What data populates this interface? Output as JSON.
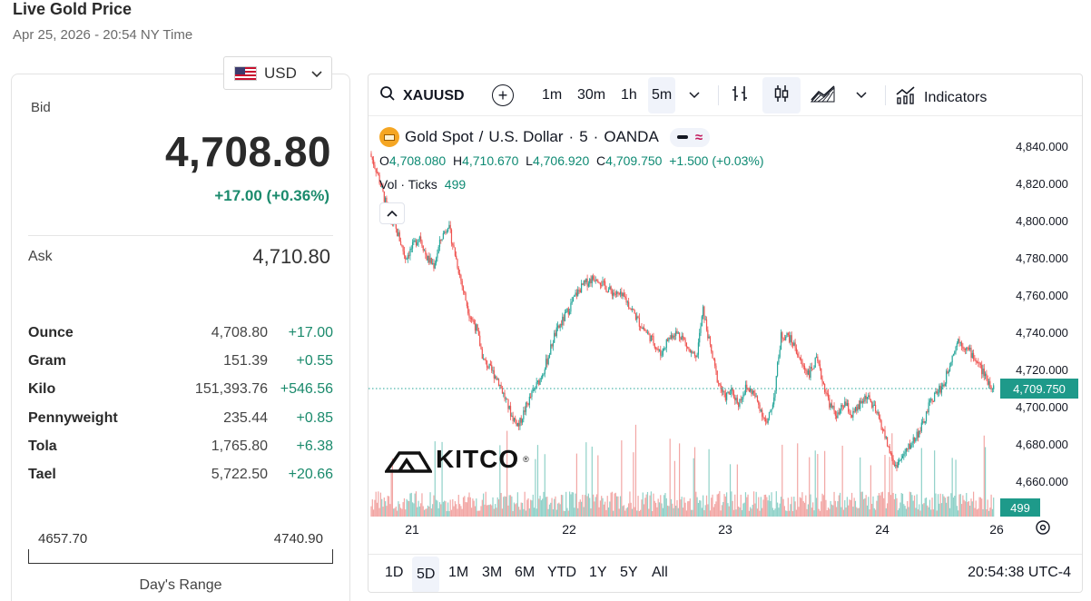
{
  "page": {
    "title": "Live Gold Price",
    "datetime": "Apr 25, 2026 - 20:54 NY Time"
  },
  "currency": {
    "code": "USD",
    "flag_icon": "us-flag-icon"
  },
  "quote": {
    "bid_label": "Bid",
    "bid": "4,708.80",
    "change": "+17.00 (+0.36%)",
    "ask_label": "Ask",
    "ask": "4,710.80",
    "change_color": "#1a8a6c"
  },
  "units": [
    {
      "name": "Ounce",
      "price": "4,708.80",
      "change": "+17.00"
    },
    {
      "name": "Gram",
      "price": "151.39",
      "change": "+0.55"
    },
    {
      "name": "Kilo",
      "price": "151,393.76",
      "change": "+546.56"
    },
    {
      "name": "Pennyweight",
      "price": "235.44",
      "change": "+0.85"
    },
    {
      "name": "Tola",
      "price": "1,765.80",
      "change": "+6.38"
    },
    {
      "name": "Tael",
      "price": "5,722.50",
      "change": "+20.66"
    }
  ],
  "range": {
    "low": "4657.70",
    "high": "4740.90",
    "label": "Day's Range"
  },
  "toolbar": {
    "symbol": "XAUUSD",
    "intervals": [
      "1m",
      "30m",
      "1h",
      "5m"
    ],
    "active_interval": "5m",
    "indicators_label": "Indicators"
  },
  "legend": {
    "title": "Gold Spot",
    "sep1": "/",
    "quote": "U.S. Dollar",
    "sep2": "·",
    "interval": "5",
    "sep3": "·",
    "source": "OANDA",
    "o_label": "O",
    "o": "4,708.080",
    "h_label": "H",
    "h": "4,710.670",
    "l_label": "L",
    "l": "4,706.920",
    "c_label": "C",
    "c": "4,709.750",
    "chg": "+1.500 (+0.03%)",
    "vol_label": "Vol · Ticks",
    "vol": "499"
  },
  "brand": {
    "logo_text": "KITCO",
    "reg": "®"
  },
  "chart_data": {
    "type": "line",
    "title": "Gold Spot / U.S. Dollar · 5 · OANDA",
    "x_tick_labels": [
      "21",
      "22",
      "23",
      "24",
      "26"
    ],
    "y_tick_labels": [
      "4,840.000",
      "4,820.000",
      "4,800.000",
      "4,780.000",
      "4,760.000",
      "4,740.000",
      "4,720.000",
      "4,700.000",
      "4,680.000",
      "4,660.000"
    ],
    "ylim": [
      4650,
      4850
    ],
    "last_price_label": "4,709.750",
    "last_price": 4709.75,
    "last_volume_label": "499",
    "series": [
      {
        "values": [
          4836,
          4826,
          4812,
          4800,
          4792,
          4780,
          4786,
          4792,
          4780,
          4776,
          4790,
          4798,
          4782,
          4765,
          4750,
          4742,
          4725,
          4720,
          4715,
          4705,
          4695,
          4690,
          4700,
          4708,
          4715,
          4725,
          4738,
          4745,
          4752,
          4760,
          4765,
          4768,
          4770,
          4765,
          4762,
          4760,
          4758,
          4752,
          4745,
          4740,
          4735,
          4728,
          4736,
          4740,
          4738,
          4730,
          4725,
          4752,
          4732,
          4715,
          4705,
          4708,
          4702,
          4710,
          4708,
          4700,
          4690,
          4705,
          4738,
          4738,
          4732,
          4722,
          4718,
          4725,
          4712,
          4700,
          4695,
          4702,
          4695,
          4700,
          4706,
          4700,
          4692,
          4680,
          4668,
          4672,
          4678,
          4684,
          4690,
          4702,
          4708,
          4712,
          4726,
          4736,
          4732,
          4728,
          4722,
          4715,
          4710
        ]
      }
    ],
    "volume_level": "moderate",
    "up_color": "#26a69a",
    "down_color": "#ef5350"
  },
  "range_buttons": [
    "1D",
    "5D",
    "1M",
    "3M",
    "6M",
    "YTD",
    "1Y",
    "5Y",
    "All"
  ],
  "active_range": "5D",
  "clock": "20:54:38 UTC-4"
}
